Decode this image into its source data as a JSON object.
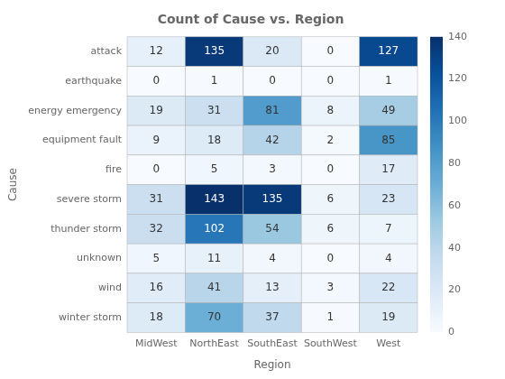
{
  "chart_data": {
    "type": "heatmap",
    "title": "Count of Cause vs. Region",
    "xlabel": "Region",
    "ylabel": "Cause",
    "categories": [
      "MidWest",
      "NorthEast",
      "SouthEast",
      "SouthWest",
      "West"
    ],
    "rows": [
      "attack",
      "earthquake",
      "energy emergency",
      "equipment fault",
      "fire",
      "severe storm",
      "thunder storm",
      "unknown",
      "wind",
      "winter storm"
    ],
    "values": [
      [
        12,
        135,
        20,
        0,
        127
      ],
      [
        0,
        1,
        0,
        0,
        1
      ],
      [
        19,
        31,
        81,
        8,
        49
      ],
      [
        9,
        18,
        42,
        2,
        85
      ],
      [
        0,
        5,
        3,
        0,
        17
      ],
      [
        31,
        143,
        135,
        6,
        23
      ],
      [
        32,
        102,
        54,
        6,
        7
      ],
      [
        5,
        11,
        4,
        0,
        4
      ],
      [
        16,
        41,
        13,
        3,
        22
      ],
      [
        18,
        70,
        37,
        1,
        19
      ]
    ],
    "colorbar": {
      "range": [
        0,
        140
      ],
      "ticks": [
        0,
        20,
        40,
        60,
        80,
        100,
        120,
        140
      ]
    },
    "data_labels": true,
    "grid": false
  }
}
